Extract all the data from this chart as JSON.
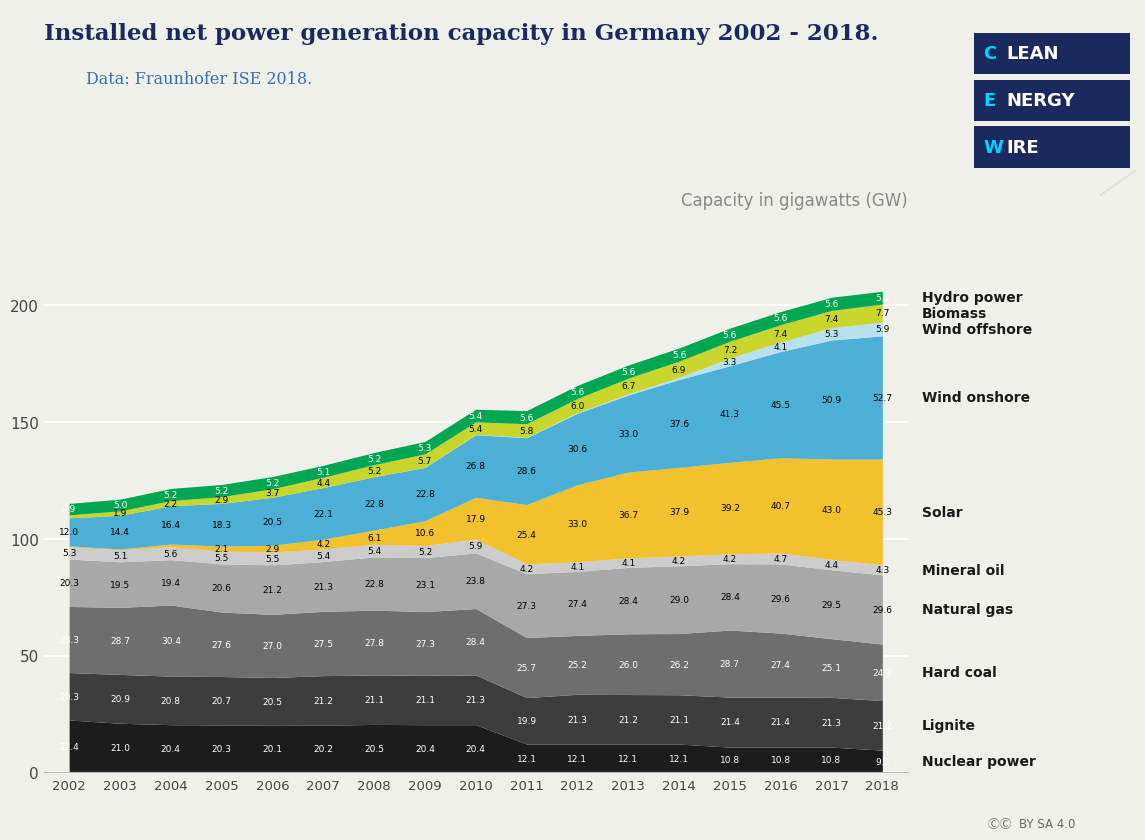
{
  "years": [
    2002,
    2003,
    2004,
    2005,
    2006,
    2007,
    2008,
    2009,
    2010,
    2011,
    2012,
    2013,
    2014,
    2015,
    2016,
    2017,
    2018
  ],
  "series": {
    "Nuclear power": [
      22.4,
      21.0,
      20.4,
      20.3,
      20.1,
      20.2,
      20.5,
      20.4,
      20.4,
      12.1,
      12.1,
      12.1,
      12.1,
      10.8,
      10.8,
      10.8,
      9.5
    ],
    "Lignite": [
      20.3,
      20.9,
      20.8,
      20.7,
      20.5,
      21.2,
      21.1,
      21.1,
      21.3,
      19.9,
      21.3,
      21.2,
      21.1,
      21.4,
      21.4,
      21.3,
      21.2
    ],
    "Hard coal": [
      28.3,
      28.7,
      30.4,
      27.6,
      27.0,
      27.5,
      27.8,
      27.3,
      28.4,
      25.7,
      25.2,
      26.0,
      26.2,
      28.7,
      27.4,
      25.1,
      24.2
    ],
    "Natural gas": [
      20.3,
      19.5,
      19.4,
      20.6,
      21.2,
      21.3,
      22.8,
      23.1,
      23.8,
      27.3,
      27.4,
      28.4,
      29.0,
      28.4,
      29.6,
      29.5,
      29.6
    ],
    "Mineral oil": [
      5.3,
      5.1,
      5.6,
      5.5,
      5.5,
      5.4,
      5.4,
      5.2,
      5.9,
      4.2,
      4.1,
      4.1,
      4.2,
      4.2,
      4.7,
      4.4,
      4.3
    ],
    "Solar": [
      0.3,
      0.4,
      1.1,
      2.1,
      2.9,
      4.2,
      6.1,
      10.6,
      17.9,
      25.4,
      33.0,
      36.7,
      37.9,
      39.2,
      40.7,
      43.0,
      45.3
    ],
    "Wind onshore": [
      12.0,
      14.4,
      16.4,
      18.3,
      20.5,
      22.1,
      22.8,
      22.8,
      26.8,
      28.6,
      30.6,
      33.0,
      37.6,
      41.3,
      45.5,
      50.9,
      52.7
    ],
    "Wind offshore": [
      0.0,
      0.0,
      0.0,
      0.0,
      0.0,
      0.0,
      0.0,
      0.1,
      0.1,
      0.2,
      0.3,
      0.5,
      1.0,
      3.3,
      4.1,
      5.3,
      5.9
    ],
    "Biomass": [
      1.3,
      1.9,
      2.2,
      2.9,
      3.7,
      4.4,
      5.2,
      5.7,
      5.4,
      5.8,
      6.0,
      6.7,
      6.9,
      7.2,
      7.4,
      7.4,
      7.7
    ],
    "Hydro power": [
      4.9,
      5.0,
      5.2,
      5.2,
      5.2,
      5.1,
      5.2,
      5.3,
      5.4,
      5.6,
      5.6,
      5.6,
      5.6,
      5.6,
      5.6,
      5.6,
      5.5
    ]
  },
  "colors": {
    "Nuclear power": "#1c1c1c",
    "Lignite": "#3d3d3d",
    "Hard coal": "#6e6e6e",
    "Natural gas": "#a8a8a8",
    "Mineral oil": "#cccccc",
    "Solar": "#f2c12e",
    "Wind onshore": "#4bafd6",
    "Wind offshore": "#b8e0f0",
    "Biomass": "#c8d62b",
    "Hydro power": "#00a651"
  },
  "label_colors": {
    "Nuclear power": "white",
    "Lignite": "white",
    "Hard coal": "white",
    "Natural gas": "black",
    "Mineral oil": "black",
    "Solar": "black",
    "Wind onshore": "black",
    "Wind offshore": "black",
    "Biomass": "black",
    "Hydro power": "white"
  },
  "title": "Installed net power generation capacity in Germany 2002 - 2018.",
  "subtitle": "Data: Fraunhofer ISE 2018.",
  "ylabel": "Capacity in gigawatts (GW)",
  "background_color": "#f0f0eb",
  "title_color": "#1a2a5e",
  "subtitle_color": "#3a6eaa"
}
